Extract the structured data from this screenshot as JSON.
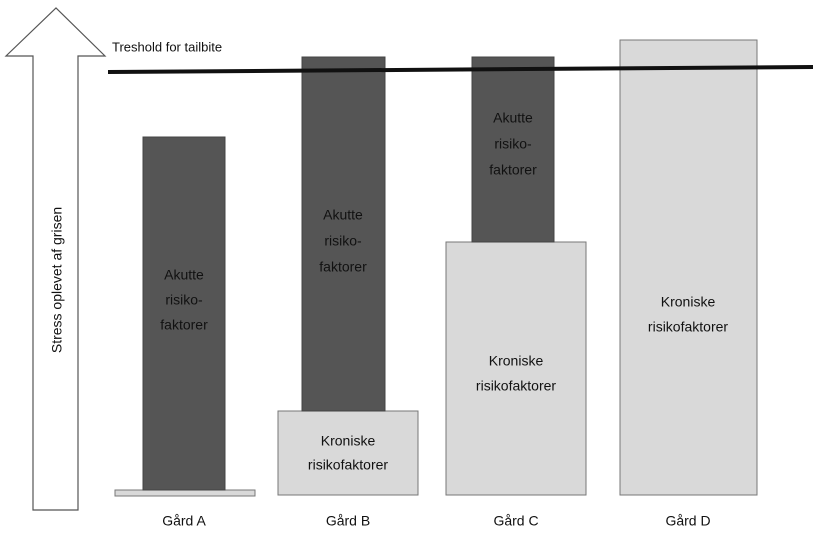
{
  "axis_label": "Stress oplevet af grisen",
  "threshold_label": "Treshold for tailbite",
  "farms": [
    {
      "label": "Gård A",
      "acute": [
        "Akutte",
        "risiko-",
        "faktorer"
      ]
    },
    {
      "label": "Gård B",
      "acute": [
        "Akutte",
        "risiko-",
        "faktorer"
      ],
      "chronic": [
        "Kroniske",
        "risikofaktorer"
      ]
    },
    {
      "label": "Gård C",
      "acute": [
        "Akutte",
        "risiko-",
        "faktorer"
      ],
      "chronic": [
        "Kroniske",
        "risikofaktorer"
      ]
    },
    {
      "label": "Gård D",
      "chronic": [
        "Kroniske",
        "risikofaktorer"
      ]
    }
  ]
}
